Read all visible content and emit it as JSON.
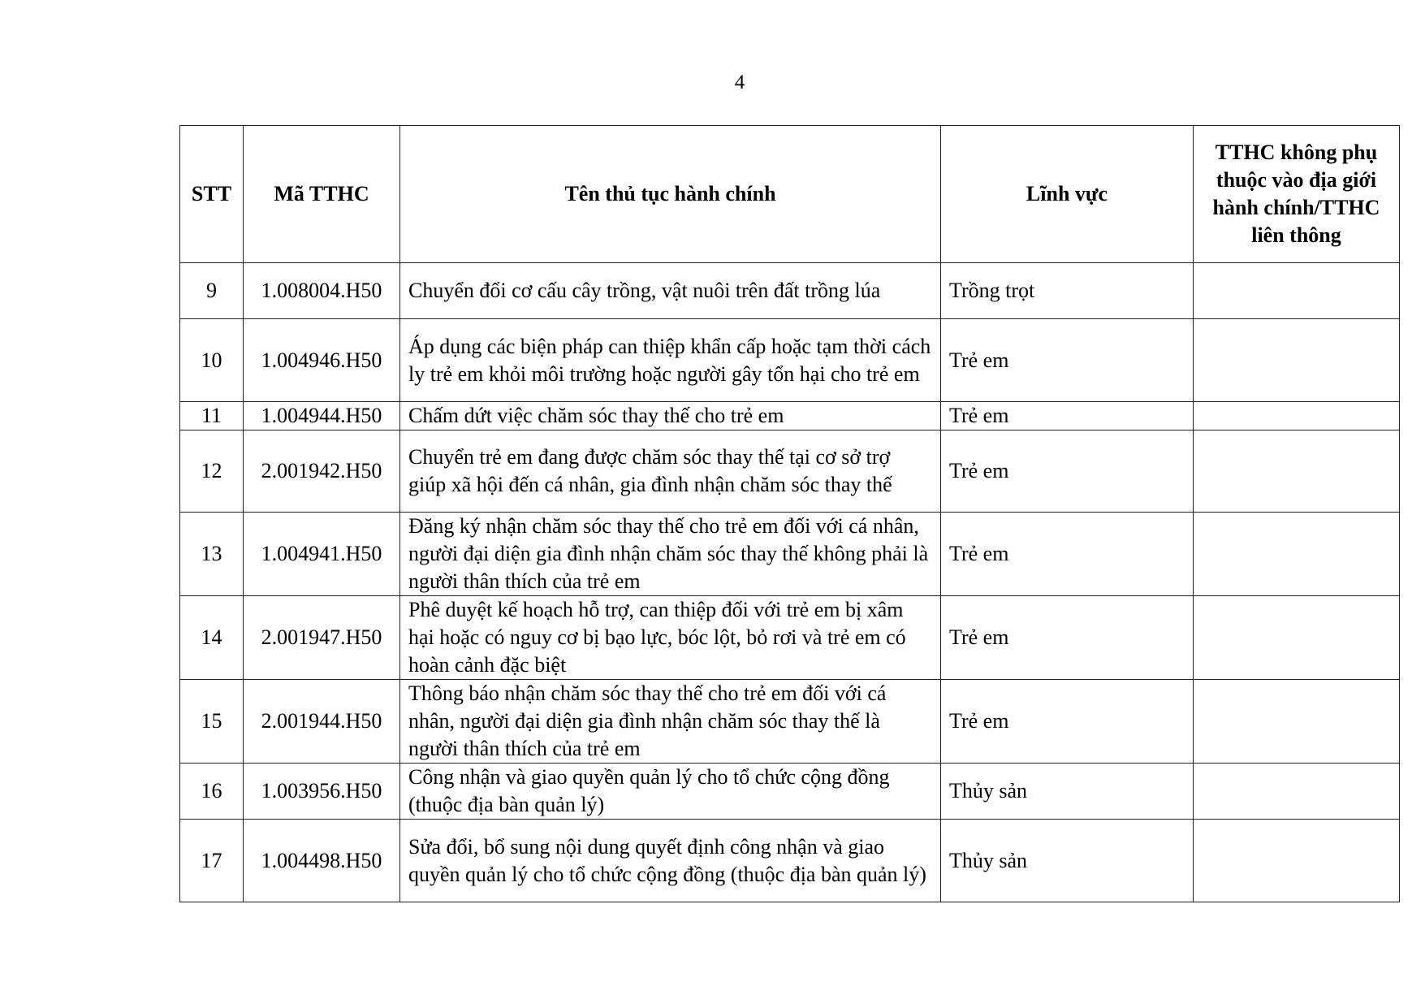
{
  "page_number": "4",
  "table": {
    "headers": [
      "STT",
      "Mã TTHC",
      "Tên thủ tục hành chính",
      "Lĩnh vực",
      "TTHC không phụ thuộc vào địa giới hành chính/TTHC liên thông"
    ],
    "rows": [
      {
        "stt": "9",
        "code": "1.008004.H50",
        "name": "Chuyển đổi cơ cấu cây trồng, vật nuôi trên đất trồng lúa",
        "field": "Trồng trọt",
        "note": ""
      },
      {
        "stt": "10",
        "code": "1.004946.H50",
        "name": "Áp dụng các biện pháp can thiệp khẩn cấp hoặc tạm thời cách ly trẻ em khỏi môi trường hoặc người gây tổn hại cho trẻ em",
        "field": "Trẻ em",
        "note": ""
      },
      {
        "stt": "11",
        "code": "1.004944.H50",
        "name": "Chấm dứt việc chăm sóc thay thế cho trẻ em",
        "field": "Trẻ em",
        "note": ""
      },
      {
        "stt": "12",
        "code": "2.001942.H50",
        "name": "Chuyển trẻ em đang được chăm sóc thay thế tại cơ sở trợ giúp xã hội đến cá nhân, gia đình nhận chăm sóc thay thế",
        "field": "Trẻ em",
        "note": ""
      },
      {
        "stt": "13",
        "code": "1.004941.H50",
        "name": "Đăng ký nhận chăm sóc thay thế cho trẻ em đối với cá nhân, người đại diện gia đình nhận chăm sóc thay thế không phải là người thân thích của trẻ em",
        "field": "Trẻ em",
        "note": ""
      },
      {
        "stt": "14",
        "code": "2.001947.H50",
        "name": "Phê duyệt kế hoạch hỗ trợ, can thiệp đối với trẻ em bị xâm hại hoặc có nguy cơ bị bạo lực, bóc lột, bỏ rơi và trẻ em có hoàn cảnh đặc biệt",
        "field": "Trẻ em",
        "note": ""
      },
      {
        "stt": "15",
        "code": "2.001944.H50",
        "name": "Thông báo nhận chăm sóc thay thế cho trẻ em đối với cá nhân, người đại diện gia đình nhận chăm sóc thay thế là người thân thích của trẻ em",
        "field": "Trẻ em",
        "note": ""
      },
      {
        "stt": "16",
        "code": "1.003956.H50",
        "name": "Công nhận và giao quyền quản lý cho tổ chức cộng đồng (thuộc địa bàn quản lý)",
        "field": "Thủy sản",
        "note": ""
      },
      {
        "stt": "17",
        "code": "1.004498.H50",
        "name": "Sửa đổi, bổ sung nội dung quyết định công nhận và giao quyền quản lý cho tổ chức cộng đồng (thuộc địa bàn quản lý)",
        "field": "Thủy sản",
        "note": ""
      }
    ]
  }
}
